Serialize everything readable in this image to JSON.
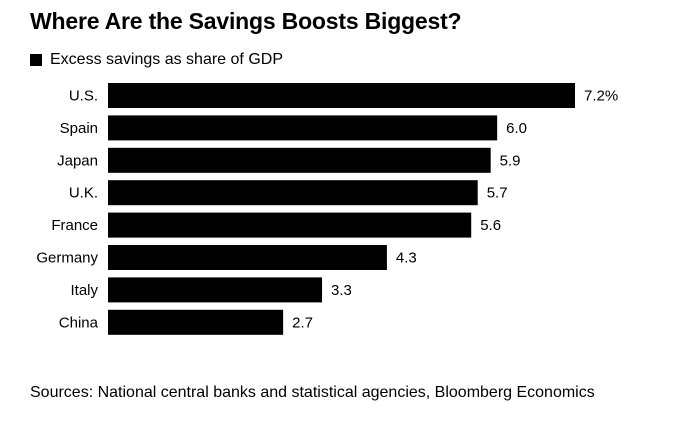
{
  "title": "Where Are the Savings Boosts Biggest?",
  "legend": {
    "label": "Excess savings as share of GDP"
  },
  "source": "Sources: National central banks and statistical agencies, Bloomberg Economics",
  "colors": {
    "bar": "#000000",
    "text": "#000000",
    "background": "#ffffff"
  },
  "chart_data": {
    "type": "bar",
    "orientation": "horizontal",
    "title": "Where Are the Savings Boosts Biggest?",
    "categories": [
      "U.S.",
      "Spain",
      "Japan",
      "U.K.",
      "France",
      "Germany",
      "Italy",
      "China"
    ],
    "values": [
      7.2,
      6.0,
      5.9,
      5.7,
      5.6,
      4.3,
      3.3,
      2.7
    ],
    "value_labels": [
      "7.2%",
      "6.0",
      "5.9",
      "5.7",
      "5.6",
      "4.3",
      "3.3",
      "2.7"
    ],
    "series": [
      {
        "name": "Excess savings as share of GDP",
        "values": [
          7.2,
          6.0,
          5.9,
          5.7,
          5.6,
          4.3,
          3.3,
          2.7
        ]
      }
    ],
    "xlabel": "",
    "ylabel": "",
    "xlim": [
      0,
      7.2
    ],
    "grid": false,
    "legend_position": "top-left"
  }
}
